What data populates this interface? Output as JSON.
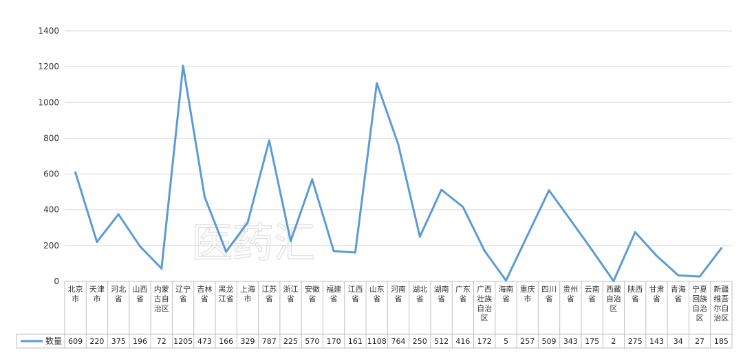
{
  "watermark": "医药汇",
  "chart_data": {
    "type": "line",
    "title": "",
    "xlabel": "",
    "ylabel": "",
    "ylim": [
      0,
      1400
    ],
    "yticks": [
      0,
      200,
      400,
      600,
      800,
      1000,
      1200,
      1400
    ],
    "grid": true,
    "legend": "bottom-left (data table)",
    "categories": [
      "北京市",
      "天津市",
      "河北省",
      "山西省",
      "内蒙古自治区",
      "辽宁省",
      "吉林省",
      "黑龙江省",
      "上海市",
      "江苏省",
      "浙江省",
      "安徽省",
      "福建省",
      "江西省",
      "山东省",
      "河南省",
      "湖北省",
      "湖南省",
      "广东省",
      "广西壮族自治区",
      "海南省",
      "重庆市",
      "四川省",
      "贵州省",
      "云南省",
      "西藏自治区",
      "陕西省",
      "甘肃省",
      "青海省",
      "宁夏回族自治区",
      "新疆维吾尔自治区"
    ],
    "series": [
      {
        "name": "数量",
        "color": "#5b9bd5",
        "values": [
          609,
          220,
          375,
          196,
          72,
          1205,
          473,
          166,
          329,
          787,
          225,
          570,
          170,
          161,
          1108,
          764,
          250,
          512,
          416,
          172,
          5,
          257,
          509,
          343,
          175,
          2,
          275,
          143,
          34,
          27,
          185
        ]
      }
    ]
  }
}
